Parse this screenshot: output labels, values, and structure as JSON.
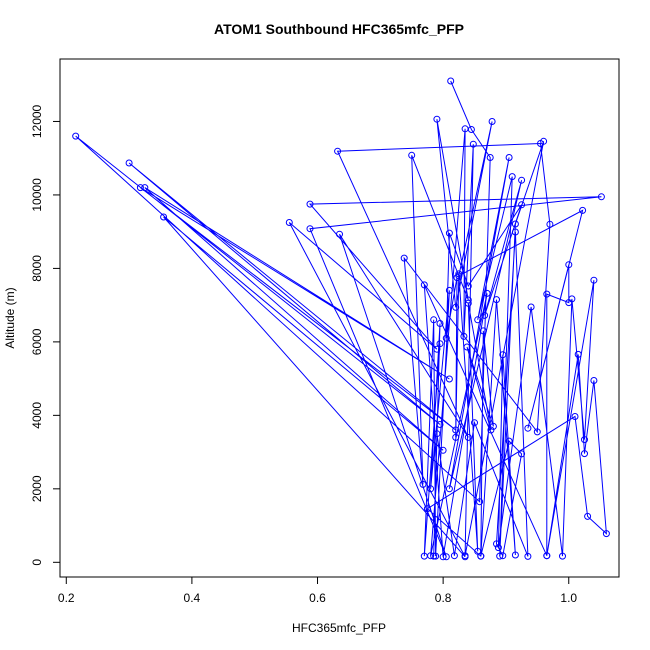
{
  "chart_data": {
    "type": "scatter",
    "title": "ATOM1 Southbound HFC365mfc_PFP",
    "xlabel": "HFC365mfc_PFP",
    "ylabel": "Altitude (m)",
    "xlim": [
      0.19,
      1.08
    ],
    "ylim": [
      -400,
      13700
    ],
    "xticks": [
      0.2,
      0.4,
      0.6,
      0.8,
      1.0
    ],
    "xtick_labels": [
      "0.2",
      "0.4",
      "0.6",
      "0.8",
      "1.0"
    ],
    "yticks": [
      0,
      2000,
      4000,
      6000,
      8000,
      10000,
      12000
    ],
    "ytick_labels": [
      "0",
      "2000",
      "4000",
      "6000",
      "8000",
      "10000",
      "12000"
    ],
    "grid": false,
    "series_color": "#0000ff",
    "marker": "open-circle",
    "series": [
      {
        "mode": "lines+markers",
        "points": [
          [
            0.812,
            13100
          ],
          [
            0.845,
            11780
          ],
          [
            0.875,
            11020
          ],
          [
            0.858,
            1650
          ],
          [
            0.215,
            11600
          ],
          [
            0.795,
            3750
          ],
          [
            0.3,
            10870
          ],
          [
            0.82,
            3600
          ],
          [
            0.318,
            10200
          ],
          [
            0.81,
            4990
          ],
          [
            0.325,
            10200
          ],
          [
            0.8,
            3050
          ],
          [
            0.355,
            9400
          ],
          [
            0.835,
            150
          ],
          [
            0.555,
            9250
          ],
          [
            0.79,
            5800
          ],
          [
            0.588,
            9750
          ],
          [
            1.052,
            9950
          ],
          [
            0.588,
            9080
          ],
          [
            0.805,
            150
          ],
          [
            0.635,
            8930
          ],
          [
            0.84,
            3400
          ],
          [
            0.632,
            11190
          ],
          [
            0.955,
            11400
          ],
          [
            0.97,
            9200
          ],
          [
            0.95,
            3550
          ],
          [
            0.738,
            8280
          ],
          [
            0.768,
            2120
          ],
          [
            0.75,
            11080
          ],
          [
            0.84,
            7140
          ],
          [
            0.79,
            12060
          ],
          [
            0.82,
            6940
          ],
          [
            0.878,
            12000
          ],
          [
            0.825,
            7800
          ],
          [
            1.022,
            9580
          ],
          [
            0.935,
            3650
          ],
          [
            1.0,
            8100
          ],
          [
            1.0,
            7070
          ],
          [
            0.965,
            7300
          ],
          [
            0.965,
            180
          ],
          [
            0.77,
            7550
          ],
          [
            0.8,
            150
          ],
          [
            0.87,
            7320
          ],
          [
            0.78,
            180
          ],
          [
            0.835,
            11800
          ],
          [
            0.833,
            6150
          ],
          [
            0.848,
            11380
          ],
          [
            0.835,
            180
          ],
          [
            0.96,
            11460
          ],
          [
            0.915,
            9210
          ],
          [
            0.89,
            170
          ],
          [
            0.91,
            10500
          ],
          [
            0.855,
            6600
          ],
          [
            0.905,
            11020
          ],
          [
            0.81,
            2000
          ],
          [
            0.925,
            10400
          ],
          [
            0.866,
            6720
          ],
          [
            0.925,
            9730
          ],
          [
            0.84,
            7520
          ],
          [
            0.81,
            8960
          ],
          [
            0.805,
            6100
          ],
          [
            0.822,
            7750
          ],
          [
            0.82,
            3400
          ],
          [
            0.825,
            7850
          ],
          [
            0.855,
            300
          ],
          [
            0.84,
            7050
          ],
          [
            0.876,
            3600
          ],
          [
            0.838,
            5860
          ],
          [
            0.88,
            3700
          ],
          [
            0.864,
            6300
          ],
          [
            0.86,
            170
          ],
          [
            0.885,
            7150
          ],
          [
            0.915,
            200
          ],
          [
            0.895,
            5650
          ],
          [
            0.888,
            400
          ],
          [
            0.94,
            6950
          ],
          [
            0.99,
            170
          ],
          [
            1.005,
            7170
          ],
          [
            1.025,
            3340
          ],
          [
            1.04,
            7680
          ],
          [
            0.965,
            180
          ],
          [
            1.015,
            5660
          ],
          [
            1.025,
            2960
          ],
          [
            1.04,
            4950
          ],
          [
            1.06,
            780
          ],
          [
            1.03,
            1250
          ],
          [
            1.01,
            3970
          ],
          [
            0.775,
            1460
          ],
          [
            0.86,
            170
          ],
          [
            0.905,
            3300
          ],
          [
            0.925,
            2950
          ],
          [
            0.895,
            180
          ],
          [
            0.885,
            500
          ],
          [
            0.915,
            8990
          ],
          [
            0.935,
            160
          ],
          [
            0.85,
            3800
          ],
          [
            0.818,
            180
          ],
          [
            0.79,
            3500
          ],
          [
            0.785,
            170
          ],
          [
            0.795,
            6500
          ],
          [
            0.78,
            2000
          ],
          [
            0.81,
            7400
          ],
          [
            0.788,
            170
          ],
          [
            0.785,
            6600
          ],
          [
            0.77,
            170
          ],
          [
            0.795,
            5950
          ]
        ]
      }
    ]
  }
}
